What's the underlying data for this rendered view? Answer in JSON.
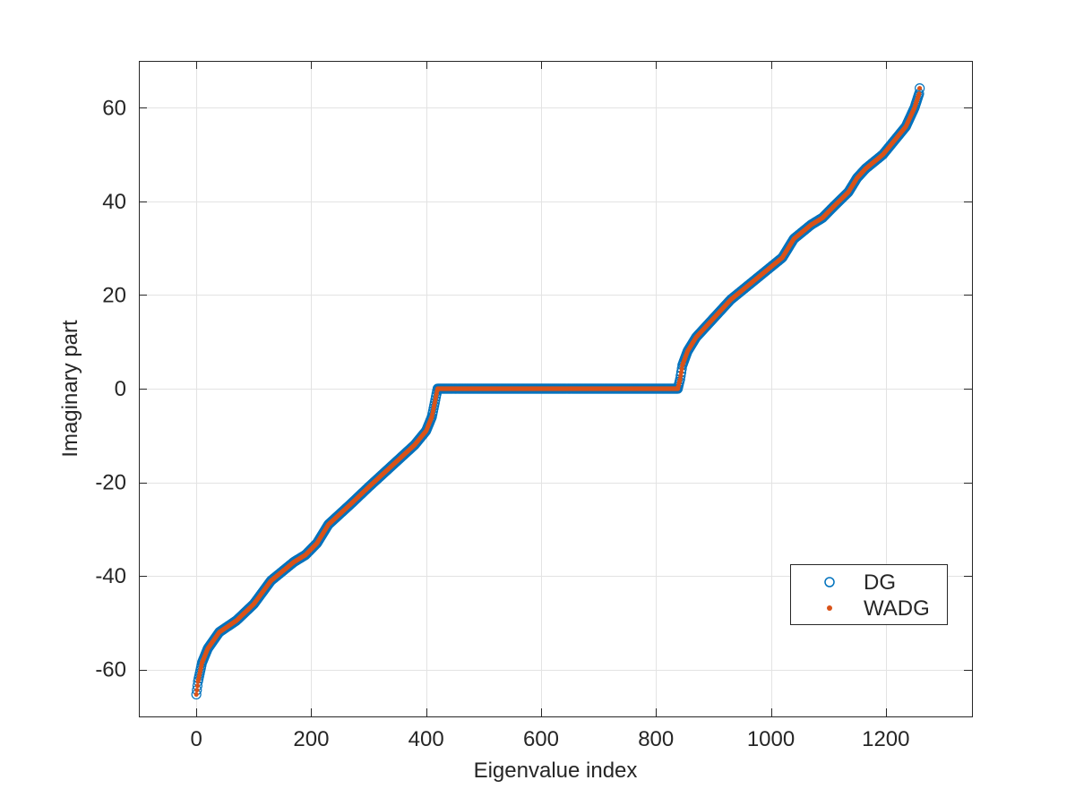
{
  "chart_data": {
    "type": "scatter",
    "title": "",
    "xlabel": "Eigenvalue index",
    "ylabel": "Imaginary part",
    "xlim": [
      -100,
      1350
    ],
    "ylim": [
      -70,
      70
    ],
    "xticks": [
      0,
      200,
      400,
      600,
      800,
      1000,
      1200
    ],
    "yticks": [
      -60,
      -40,
      -20,
      0,
      20,
      40,
      60
    ],
    "xtick_labels": [
      "0",
      "200",
      "400",
      "600",
      "800",
      "1000",
      "1200"
    ],
    "ytick_labels": [
      "-60",
      "-40",
      "-20",
      "0",
      "20",
      "40",
      "60"
    ],
    "grid": true,
    "legend_position": "bottom-right",
    "n_points": 1260,
    "series": [
      {
        "name": "DG",
        "marker": "open-circle",
        "color": "#0072BD"
      },
      {
        "name": "WADG",
        "marker": "filled-dot",
        "color": "#D95319"
      }
    ],
    "curve_anchors": [
      [
        0,
        -65.3
      ],
      [
        3,
        -62.5
      ],
      [
        10,
        -58.5
      ],
      [
        20,
        -55.5
      ],
      [
        40,
        -52
      ],
      [
        70,
        -49.5
      ],
      [
        100,
        -46
      ],
      [
        130,
        -41
      ],
      [
        150,
        -39
      ],
      [
        170,
        -37
      ],
      [
        190,
        -35.5
      ],
      [
        210,
        -33
      ],
      [
        230,
        -29
      ],
      [
        270,
        -24.5
      ],
      [
        300,
        -21
      ],
      [
        340,
        -16.5
      ],
      [
        380,
        -12
      ],
      [
        400,
        -9
      ],
      [
        410,
        -6
      ],
      [
        415,
        -3
      ],
      [
        419,
        -0.5
      ],
      [
        420,
        0
      ],
      [
        838,
        0
      ],
      [
        839,
        0.5
      ],
      [
        842,
        2
      ],
      [
        846,
        5
      ],
      [
        855,
        8
      ],
      [
        870,
        11
      ],
      [
        900,
        15
      ],
      [
        930,
        19
      ],
      [
        960,
        22
      ],
      [
        990,
        25
      ],
      [
        1020,
        28
      ],
      [
        1040,
        32
      ],
      [
        1070,
        35
      ],
      [
        1090,
        36.5
      ],
      [
        1110,
        39
      ],
      [
        1135,
        42
      ],
      [
        1150,
        45
      ],
      [
        1165,
        47
      ],
      [
        1195,
        50
      ],
      [
        1215,
        53
      ],
      [
        1235,
        56
      ],
      [
        1250,
        60
      ],
      [
        1258,
        63
      ],
      [
        1260,
        65.3
      ]
    ]
  }
}
